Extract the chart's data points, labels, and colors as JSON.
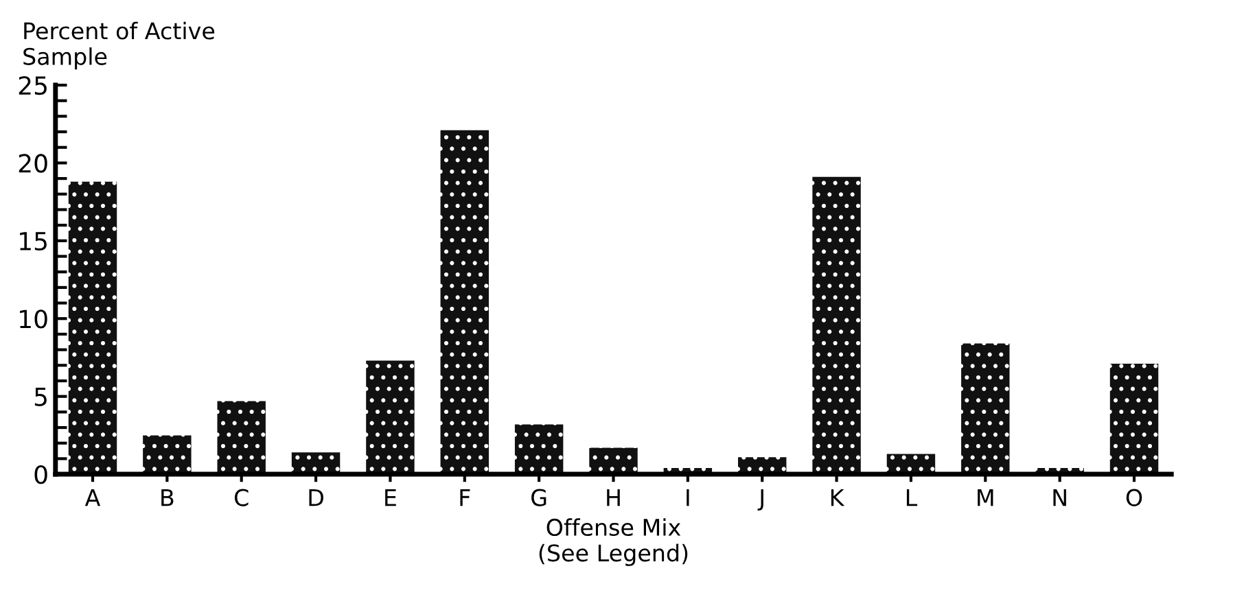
{
  "chart_data": {
    "type": "bar",
    "ylabel": "Percent of Active\nSample",
    "xlabel": "Offense Mix\n(See Legend)",
    "categories": [
      "A",
      "B",
      "C",
      "D",
      "E",
      "F",
      "G",
      "H",
      "I",
      "J",
      "K",
      "L",
      "M",
      "N",
      "O"
    ],
    "values": [
      18.8,
      2.5,
      4.7,
      1.4,
      7.3,
      22.1,
      3.2,
      1.7,
      0.4,
      1.1,
      19.1,
      1.3,
      8.4,
      0.4,
      7.1
    ],
    "color": "#111111",
    "ylim": [
      0,
      25
    ],
    "yticks": [
      0,
      {
        "value": 1,
        "label": null
      },
      {
        "value": 2,
        "label": null
      },
      {
        "value": 3,
        "label": null
      },
      {
        "value": 4,
        "label": null
      },
      5,
      {
        "value": 6,
        "label": null
      },
      {
        "value": 7,
        "label": null
      },
      {
        "value": 8,
        "label": null
      },
      {
        "value": 9,
        "label": null
      },
      10,
      {
        "value": 11,
        "label": null
      },
      {
        "value": 12,
        "label": null
      },
      {
        "value": 13,
        "label": null
      },
      {
        "value": 14,
        "label": null
      },
      15,
      {
        "value": 16,
        "label": null
      },
      {
        "value": 17,
        "label": null
      },
      {
        "value": 18,
        "label": null
      },
      {
        "value": 19,
        "label": null
      },
      20,
      {
        "value": 21,
        "label": null
      },
      {
        "value": 22,
        "label": null
      },
      {
        "value": 23,
        "label": null
      },
      {
        "value": 24,
        "label": null
      },
      25
    ],
    "grid": false
  }
}
